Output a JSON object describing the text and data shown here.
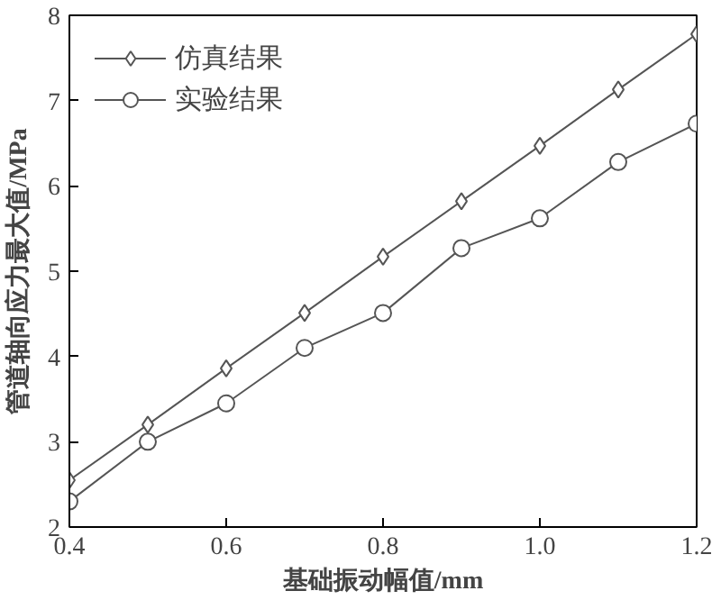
{
  "chart_data": {
    "type": "line",
    "xlabel": "基础振动幅值/mm",
    "ylabel": "管道轴向应力最大值/MPa",
    "x": [
      0.4,
      0.5,
      0.6,
      0.7,
      0.8,
      0.9,
      1.0,
      1.1,
      1.2
    ],
    "series": [
      {
        "name": "仿真结果",
        "color": "#555555",
        "marker": "diamond",
        "values": [
          2.55,
          3.2,
          3.86,
          4.51,
          5.17,
          5.82,
          6.47,
          7.13,
          7.78
        ]
      },
      {
        "name": "实验结果",
        "color": "#555555",
        "marker": "circle",
        "values": [
          2.3,
          3.0,
          3.45,
          4.1,
          4.51,
          5.27,
          5.62,
          6.28,
          6.73
        ]
      }
    ],
    "xlim": [
      0.4,
      1.2
    ],
    "ylim": [
      2,
      8
    ],
    "xticks": [
      0.4,
      0.6,
      0.8,
      {
        "value": 1.0,
        "label": "1.0"
      },
      1.2
    ],
    "yticks": [
      2,
      3,
      4,
      5,
      6,
      7,
      8
    ],
    "grid": false,
    "legend": "top left",
    "line_style": "solid"
  }
}
